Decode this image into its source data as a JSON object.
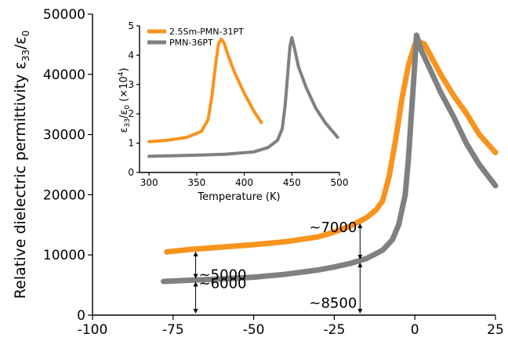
{
  "chart_data": [
    {
      "id": "main",
      "type": "line",
      "title": "",
      "xlabel": "",
      "ylabel": "Relative dielectric permittivity ε33/ε0",
      "ylabel_main": "Relative dielectric permittivity ε",
      "ylabel_sub1": "33",
      "ylabel_slash": "/ε",
      "ylabel_sub2": "0",
      "xlim": [
        -100,
        25
      ],
      "ylim": [
        0,
        50000
      ],
      "xticks": [
        -100,
        -75,
        -50,
        -25,
        0,
        25
      ],
      "yticks": [
        0,
        10000,
        20000,
        30000,
        40000,
        50000
      ],
      "xtick_labels": [
        "-100",
        "-75",
        "-50",
        "-25",
        "0",
        "25"
      ],
      "ytick_labels": [
        "0",
        "10000",
        "20000",
        "30000",
        "40000",
        "50000"
      ],
      "series": [
        {
          "name": "2.5Sm-PMN-31PT",
          "color": "#F7941D",
          "x": [
            -77,
            -70,
            -60,
            -50,
            -40,
            -30,
            -25,
            -20,
            -15,
            -12,
            -10,
            -8,
            -6,
            -4,
            -2,
            0,
            1,
            3,
            5,
            8,
            12,
            16,
            20,
            25
          ],
          "y": [
            10500,
            10900,
            11300,
            11700,
            12200,
            13000,
            13800,
            14800,
            16200,
            17500,
            19000,
            23000,
            29000,
            36000,
            41500,
            45000,
            45500,
            45000,
            43000,
            40000,
            36500,
            33500,
            30000,
            27000
          ]
        },
        {
          "name": "PMN-36PT",
          "color": "#808080",
          "x": [
            -78,
            -70,
            -60,
            -50,
            -40,
            -30,
            -25,
            -20,
            -15,
            -10,
            -7,
            -5,
            -3,
            -2,
            -1,
            0,
            0.5,
            2,
            5,
            8,
            12,
            16,
            20,
            25
          ],
          "y": [
            5600,
            5800,
            6000,
            6300,
            6800,
            7500,
            8000,
            8600,
            9400,
            10800,
            12500,
            15000,
            20000,
            26000,
            34000,
            42000,
            46500,
            44000,
            40500,
            37000,
            33000,
            28500,
            25000,
            21500
          ]
        }
      ],
      "annotations": [
        {
          "text": "~5000",
          "x": -68,
          "y1": 5800,
          "y2": 10800
        },
        {
          "text": "~6000",
          "x": -68,
          "y1": 0,
          "y2": 5800
        },
        {
          "text": "~7000",
          "x": -17,
          "y1": 9000,
          "y2": 15500
        },
        {
          "text": "~8500",
          "x": -17,
          "y1": 0,
          "y2": 9000
        }
      ]
    },
    {
      "id": "inset",
      "type": "line",
      "xlabel": "Temperature (K)",
      "ylabel": "ε33/ε0 (×10⁴)",
      "ylabel_eps": "ε",
      "ylabel_sub1": "33",
      "ylabel_slash": "/ε",
      "ylabel_sub2": "0",
      "ylabel_unit": " (×10",
      "ylabel_exp": "4",
      "ylabel_close": ")",
      "xlim": [
        290,
        500
      ],
      "ylim": [
        0,
        5
      ],
      "xticks": [
        300,
        350,
        400,
        450,
        500
      ],
      "yticks": [
        0,
        1,
        2,
        3,
        4,
        5
      ],
      "xtick_labels": [
        "300",
        "350",
        "400",
        "450",
        "500"
      ],
      "ytick_labels": [
        "0",
        "1",
        "2",
        "3",
        "4",
        "5"
      ],
      "legend": "top-left",
      "series": [
        {
          "name": "2.5Sm-PMN-31PT",
          "color": "#F7941D",
          "x": [
            300,
            320,
            340,
            355,
            362,
            366,
            370,
            373,
            376,
            379,
            383,
            390,
            400,
            410,
            418
          ],
          "y": [
            1.05,
            1.1,
            1.2,
            1.4,
            1.8,
            2.6,
            3.7,
            4.4,
            4.55,
            4.4,
            4.0,
            3.4,
            2.7,
            2.1,
            1.7
          ]
        },
        {
          "name": "PMN-36PT",
          "color": "#808080",
          "x": [
            300,
            340,
            380,
            410,
            425,
            435,
            440,
            443,
            446,
            448,
            450,
            453,
            457,
            465,
            475,
            485,
            498
          ],
          "y": [
            0.55,
            0.58,
            0.62,
            0.7,
            0.85,
            1.1,
            1.5,
            2.3,
            3.5,
            4.3,
            4.6,
            4.2,
            3.6,
            2.9,
            2.2,
            1.7,
            1.2
          ]
        }
      ]
    }
  ]
}
